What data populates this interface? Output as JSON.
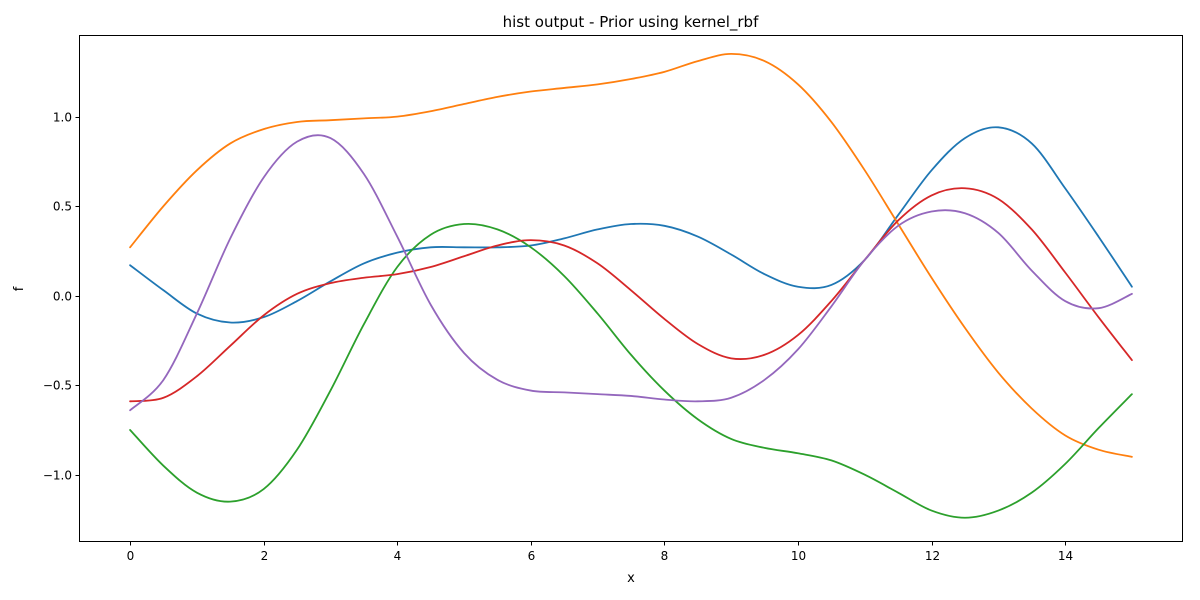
{
  "chart_data": {
    "type": "line",
    "title": "hist output - Prior using kernel_rbf",
    "xlabel": "x",
    "ylabel": "f",
    "xlim": [
      -0.75,
      15.75
    ],
    "ylim": [
      -1.37,
      1.45
    ],
    "xticks": [
      0,
      2,
      4,
      6,
      8,
      10,
      12,
      14
    ],
    "xtick_labels": [
      "0",
      "2",
      "4",
      "6",
      "8",
      "10",
      "12",
      "14"
    ],
    "yticks": [
      1.0,
      0.5,
      0.0,
      -0.5,
      -1.0
    ],
    "ytick_labels": [
      "1.0",
      "0.5",
      "0.0",
      "−0.5",
      "−1.0"
    ],
    "grid": false,
    "legend": "none",
    "series": [
      {
        "color": "#1f77b4",
        "x": [
          0,
          0.5,
          1,
          1.5,
          2,
          2.5,
          3,
          3.5,
          4,
          4.5,
          5,
          5.5,
          6,
          6.5,
          7,
          7.5,
          8,
          8.5,
          9,
          9.5,
          10,
          10.5,
          11,
          11.5,
          12,
          12.5,
          13,
          13.5,
          14,
          14.5,
          15
        ],
        "y": [
          0.17,
          0.03,
          -0.1,
          -0.15,
          -0.12,
          -0.03,
          0.08,
          0.18,
          0.24,
          0.27,
          0.27,
          0.27,
          0.28,
          0.32,
          0.37,
          0.4,
          0.39,
          0.33,
          0.23,
          0.12,
          0.05,
          0.06,
          0.2,
          0.45,
          0.7,
          0.88,
          0.94,
          0.85,
          0.6,
          0.33,
          0.05
        ]
      },
      {
        "color": "#ff7f0e",
        "x": [
          0,
          0.5,
          1,
          1.5,
          2,
          2.5,
          3,
          3.5,
          4,
          4.5,
          5,
          5.5,
          6,
          6.5,
          7,
          7.5,
          8,
          8.5,
          9,
          9.5,
          10,
          10.5,
          11,
          11.5,
          12,
          12.5,
          13,
          13.5,
          14,
          14.5,
          15
        ],
        "y": [
          0.27,
          0.5,
          0.7,
          0.85,
          0.93,
          0.97,
          0.98,
          0.99,
          1.0,
          1.03,
          1.07,
          1.11,
          1.14,
          1.16,
          1.18,
          1.21,
          1.25,
          1.31,
          1.35,
          1.31,
          1.18,
          0.97,
          0.7,
          0.4,
          0.1,
          -0.18,
          -0.43,
          -0.63,
          -0.78,
          -0.86,
          -0.9
        ]
      },
      {
        "color": "#2ca02c",
        "x": [
          0,
          0.5,
          1,
          1.5,
          2,
          2.5,
          3,
          3.5,
          4,
          4.5,
          5,
          5.5,
          6,
          6.5,
          7,
          7.5,
          8,
          8.5,
          9,
          9.5,
          10,
          10.5,
          11,
          11.5,
          12,
          12.5,
          13,
          13.5,
          14,
          14.5,
          15
        ],
        "y": [
          -0.75,
          -0.95,
          -1.1,
          -1.15,
          -1.08,
          -0.86,
          -0.53,
          -0.16,
          0.16,
          0.34,
          0.4,
          0.37,
          0.27,
          0.11,
          -0.1,
          -0.33,
          -0.53,
          -0.69,
          -0.8,
          -0.85,
          -0.88,
          -0.92,
          -1.0,
          -1.1,
          -1.2,
          -1.24,
          -1.2,
          -1.1,
          -0.94,
          -0.74,
          -0.55
        ]
      },
      {
        "color": "#d62728",
        "x": [
          0,
          0.5,
          1,
          1.5,
          2,
          2.5,
          3,
          3.5,
          4,
          4.5,
          5,
          5.5,
          6,
          6.5,
          7,
          7.5,
          8,
          8.5,
          9,
          9.5,
          10,
          10.5,
          11,
          11.5,
          12,
          12.5,
          13,
          13.5,
          14,
          14.5,
          15
        ],
        "y": [
          -0.59,
          -0.57,
          -0.45,
          -0.28,
          -0.11,
          0.01,
          0.07,
          0.1,
          0.12,
          0.16,
          0.22,
          0.28,
          0.31,
          0.28,
          0.18,
          0.03,
          -0.13,
          -0.27,
          -0.35,
          -0.33,
          -0.22,
          -0.03,
          0.2,
          0.42,
          0.56,
          0.6,
          0.54,
          0.37,
          0.13,
          -0.12,
          -0.36
        ]
      },
      {
        "color": "#9467bd",
        "x": [
          0,
          0.5,
          1,
          1.5,
          2,
          2.5,
          3,
          3.5,
          4,
          4.5,
          5,
          5.5,
          6,
          6.5,
          7,
          7.5,
          8,
          8.5,
          9,
          9.5,
          10,
          10.5,
          11,
          11.5,
          12,
          12.5,
          13,
          13.5,
          14,
          14.5,
          15
        ],
        "y": [
          -0.64,
          -0.47,
          -0.1,
          0.32,
          0.66,
          0.86,
          0.88,
          0.68,
          0.33,
          -0.05,
          -0.32,
          -0.47,
          -0.53,
          -0.54,
          -0.55,
          -0.56,
          -0.58,
          -0.59,
          -0.57,
          -0.47,
          -0.3,
          -0.06,
          0.2,
          0.39,
          0.47,
          0.46,
          0.35,
          0.14,
          -0.03,
          -0.07,
          0.01
        ]
      }
    ]
  }
}
